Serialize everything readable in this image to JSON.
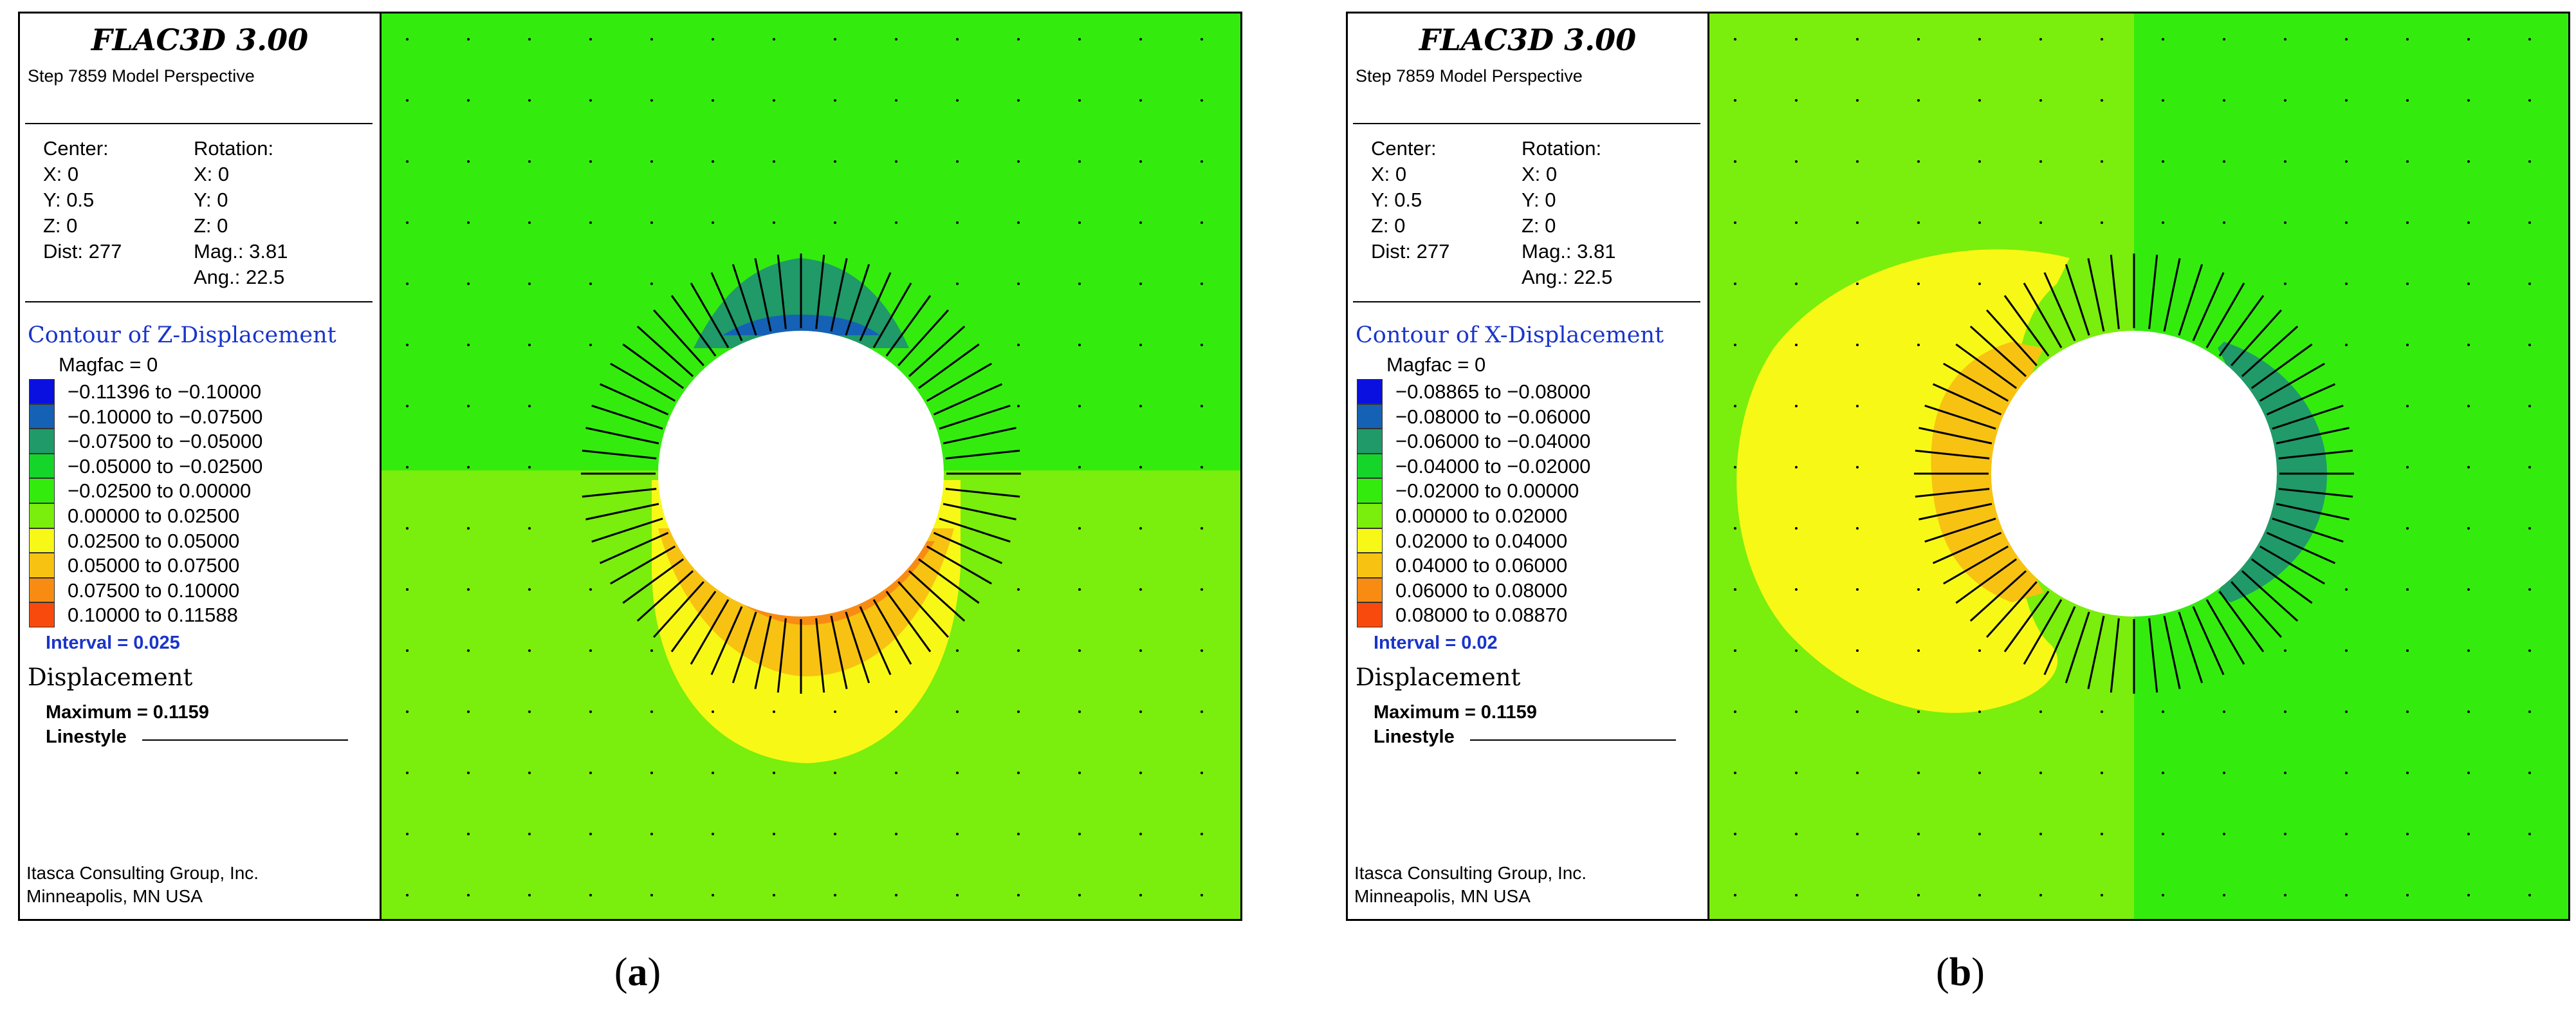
{
  "panels": [
    {
      "app_title": "FLAC3D 3.00",
      "step_line": "Step 7859 Model Perspective",
      "center_label": "Center:",
      "center_x": "X: 0",
      "center_y": "Y: 0.5",
      "center_z": "Z: 0",
      "dist": "Dist: 277",
      "rotation_label": "Rotation:",
      "rotation_x": "X: 0",
      "rotation_y": "Y: 0",
      "rotation_z": "Z: 0",
      "mag": "Mag.: 3.81",
      "ang": "Ang.: 22.5",
      "contour_title": "Contour of Z-Displacement",
      "magfac": "Magfac = 0",
      "bands": [
        {
          "label": "−0.11396 to −0.10000",
          "color": "#0a10e0"
        },
        {
          "label": "−0.10000 to −0.07500",
          "color": "#1561b5"
        },
        {
          "label": "−0.07500 to −0.05000",
          "color": "#1f9a68"
        },
        {
          "label": "−0.05000 to −0.02500",
          "color": "#16d52a"
        },
        {
          "label": "−0.02500 to 0.00000",
          "color": "#33ec0e"
        },
        {
          "label": "0.00000 to 0.02500",
          "color": "#7aee0c"
        },
        {
          "label": "0.02500 to 0.05000",
          "color": "#f8f816"
        },
        {
          "label": "0.05000 to 0.07500",
          "color": "#f8c212"
        },
        {
          "label": "0.07500 to 0.10000",
          "color": "#f88c12"
        },
        {
          "label": "0.10000 to 0.11588",
          "color": "#f84a0c"
        }
      ],
      "interval": "Interval = 0.025",
      "disp_title": "Displacement",
      "maximum": "Maximum = 0.1159",
      "linestyle": "Linestyle",
      "company_1": "Itasca Consulting Group, Inc.",
      "company_2": "Minneapolis, MN  USA",
      "caption_letter": "a"
    },
    {
      "app_title": "FLAC3D 3.00",
      "step_line": "Step 7859 Model Perspective",
      "center_label": "Center:",
      "center_x": "X: 0",
      "center_y": "Y: 0.5",
      "center_z": "Z: 0",
      "dist": "Dist: 277",
      "rotation_label": "Rotation:",
      "rotation_x": "X: 0",
      "rotation_y": "Y: 0",
      "rotation_z": "Z: 0",
      "mag": "Mag.: 3.81",
      "ang": "Ang.: 22.5",
      "contour_title": "Contour of X-Displacement",
      "magfac": "Magfac = 0",
      "bands": [
        {
          "label": "−0.08865 to −0.08000",
          "color": "#0a10e0"
        },
        {
          "label": "−0.08000 to −0.06000",
          "color": "#1561b5"
        },
        {
          "label": "−0.06000 to −0.04000",
          "color": "#1f9a68"
        },
        {
          "label": "−0.04000 to −0.02000",
          "color": "#16d52a"
        },
        {
          "label": "−0.02000 to 0.00000",
          "color": "#33ec0e"
        },
        {
          "label": "0.00000 to 0.02000",
          "color": "#7aee0c"
        },
        {
          "label": "0.02000 to 0.04000",
          "color": "#f8f816"
        },
        {
          "label": "0.04000 to 0.06000",
          "color": "#f8c212"
        },
        {
          "label": "0.06000 to 0.08000",
          "color": "#f88c12"
        },
        {
          "label": "0.08000 to 0.08870",
          "color": "#f84a0c"
        }
      ],
      "interval": "Interval = 0.02",
      "disp_title": "Displacement",
      "maximum": "Maximum = 0.1159",
      "linestyle": "Linestyle",
      "company_1": "Itasca Consulting Group, Inc.",
      "company_2": "Minneapolis, MN  USA",
      "caption_letter": "b"
    }
  ],
  "colors": {
    "green_negative": "#33ec0e",
    "green_positive": "#7aee0c",
    "yellow": "#f8f816",
    "orange_light": "#f8c212",
    "orange": "#f88c12",
    "teal": "#1f9a68",
    "blue_dark": "#0a10e0",
    "blue_mid": "#1561b5",
    "vector": "#000000",
    "legend_blue_text": "#1a35c9"
  }
}
